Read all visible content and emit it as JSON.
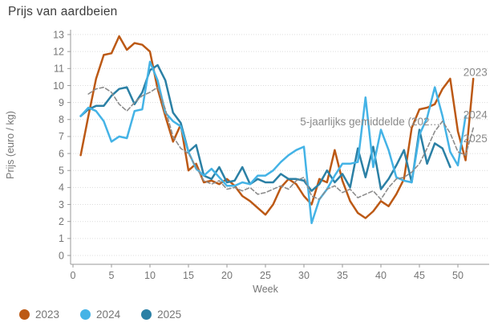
{
  "title": "Prijs van aardbeien",
  "legend": {
    "items": [
      {
        "label": "2023",
        "color": "#bc5915"
      },
      {
        "label": "2024",
        "color": "#44b3e6"
      },
      {
        "label": "2025",
        "color": "#2b80a5"
      }
    ]
  },
  "chart_data": {
    "type": "line",
    "title": "Prijs van aardbeien",
    "xlabel": "Week",
    "ylabel": "Prijs (euro / kg)",
    "xlim": [
      0,
      54
    ],
    "ylim": [
      0,
      13
    ],
    "x_ticks": [
      0,
      5,
      10,
      15,
      20,
      25,
      30,
      35,
      40,
      45,
      50
    ],
    "y_ticks": [
      0,
      1,
      2,
      3,
      4,
      5,
      6,
      7,
      8,
      9,
      10,
      11,
      12,
      13
    ],
    "grid": true,
    "legend_position": "bottom-left",
    "x": [
      1,
      2,
      3,
      4,
      5,
      6,
      7,
      8,
      9,
      10,
      11,
      12,
      13,
      14,
      15,
      16,
      17,
      18,
      19,
      20,
      21,
      22,
      23,
      24,
      25,
      26,
      27,
      28,
      29,
      30,
      31,
      32,
      33,
      34,
      35,
      36,
      37,
      38,
      39,
      40,
      41,
      42,
      43,
      44,
      45,
      46,
      47,
      48,
      49,
      50,
      51,
      52
    ],
    "series": [
      {
        "name": "2023",
        "color": "#bc5915",
        "style": "solid",
        "in_legend": true,
        "values": [
          5.9,
          8.2,
          10.4,
          11.8,
          11.9,
          12.9,
          12.1,
          12.5,
          12.4,
          12.0,
          9.8,
          8.2,
          6.7,
          7.7,
          5.0,
          5.4,
          4.3,
          4.4,
          4.2,
          4.5,
          4.1,
          3.5,
          3.2,
          2.8,
          2.4,
          3.0,
          4.0,
          4.5,
          4.2,
          3.5,
          3.0,
          4.5,
          4.3,
          6.2,
          4.4,
          3.2,
          2.5,
          2.2,
          2.6,
          3.2,
          2.9,
          3.6,
          4.5,
          7.5,
          8.6,
          8.7,
          8.9,
          9.8,
          10.4,
          7.3,
          5.6,
          10.4
        ]
      },
      {
        "name": "2024",
        "color": "#44b3e6",
        "style": "solid",
        "in_legend": true,
        "values": [
          8.2,
          8.7,
          8.5,
          7.9,
          6.7,
          7.0,
          6.9,
          8.5,
          8.6,
          11.4,
          10.3,
          8.4,
          7.9,
          7.6,
          6.1,
          5.1,
          4.7,
          5.1,
          4.6,
          4.1,
          4.1,
          4.3,
          4.2,
          4.7,
          4.7,
          5.0,
          5.5,
          5.9,
          6.2,
          6.4,
          1.9,
          3.3,
          3.9,
          4.7,
          5.4,
          5.4,
          5.5,
          9.3,
          5.2,
          7.4,
          6.2,
          4.6,
          4.4,
          4.3,
          7.1,
          8.1,
          9.9,
          8.2,
          6.1,
          5.3,
          8.2,
          null
        ]
      },
      {
        "name": "2025",
        "color": "#2b80a5",
        "style": "solid",
        "in_legend": true,
        "values": [
          8.2,
          8.6,
          8.8,
          8.8,
          9.4,
          9.8,
          9.9,
          8.9,
          9.6,
          10.9,
          11.2,
          10.3,
          8.4,
          7.8,
          6.1,
          6.5,
          4.7,
          4.5,
          5.2,
          4.3,
          4.4,
          5.2,
          4.2,
          4.5,
          4.3,
          4.3,
          4.8,
          4.5,
          4.5,
          4.4,
          3.8,
          4.2,
          5.0,
          4.3,
          4.8,
          4.0,
          6.3,
          4.6,
          6.4,
          3.9,
          4.5,
          5.3,
          6.2,
          4.3,
          7.4,
          5.4,
          6.6,
          6.3,
          5.2,
          null,
          null,
          null
        ]
      },
      {
        "name": "5-jaarlijks gemiddelde (202…",
        "color": "#8c8c8c",
        "style": "dashed",
        "in_legend": false,
        "values": [
          null,
          9.5,
          9.8,
          9.9,
          9.6,
          8.9,
          8.5,
          9.0,
          9.4,
          9.6,
          9.9,
          8.6,
          7.0,
          6.3,
          6.0,
          5.2,
          4.4,
          4.2,
          4.4,
          3.9,
          4.0,
          3.8,
          4.0,
          3.6,
          3.7,
          3.9,
          4.1,
          3.9,
          4.4,
          4.6,
          3.5,
          3.3,
          3.9,
          4.1,
          3.7,
          3.9,
          3.4,
          3.6,
          3.8,
          3.3,
          4.0,
          4.5,
          4.6,
          4.9,
          5.4,
          6.3,
          7.3,
          7.9,
          7.2,
          6.1,
          5.9,
          7.5
        ]
      }
    ],
    "annotations": [
      {
        "text": "5-jaarlijks gemiddelde (202…",
        "x": 29.5,
        "y": 7.85,
        "anchor": "start",
        "name": "average-series-label"
      },
      {
        "text": "2023",
        "x": 50.7,
        "y": 10.75,
        "anchor": "start",
        "name": "end-label-2023"
      },
      {
        "text": "2024",
        "x": 50.7,
        "y": 8.25,
        "anchor": "start",
        "name": "end-label-2024"
      },
      {
        "text": "2025",
        "x": 50.7,
        "y": 6.85,
        "anchor": "start",
        "name": "end-label-2025"
      }
    ],
    "colors": {
      "axis": "#9a9a9a",
      "grid": "#dcdcdc",
      "tick_text": "#757575",
      "title_text": "#3c3c3c",
      "annotation_text": "#8a8a8a"
    }
  }
}
